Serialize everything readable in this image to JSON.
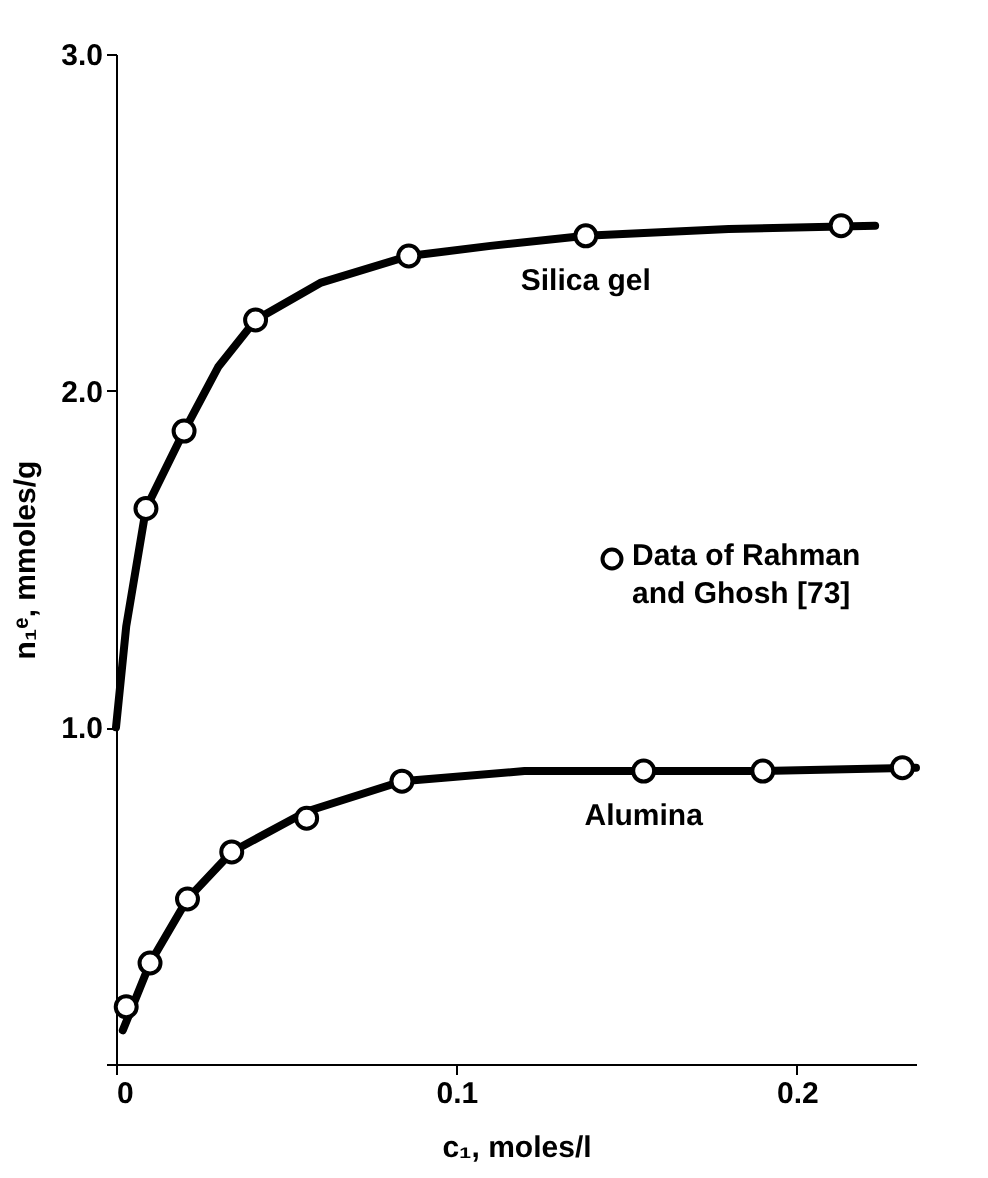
{
  "chart_data": {
    "type": "line",
    "xlabel": "c₁, moles/l",
    "ylabel": "n₁ᵉ, mmoles/g",
    "xlim": [
      0,
      0.235
    ],
    "xticks": [
      0,
      0.1,
      0.2
    ],
    "ylim": [
      0,
      3.0
    ],
    "yticks": [
      {
        "value": 0,
        "label": null
      },
      {
        "value": 1,
        "label": "1.0"
      },
      {
        "value": 2,
        "label": "2.0"
      },
      {
        "value": 3,
        "label": "3.0"
      }
    ],
    "grid": false,
    "legend": "right",
    "line_style": "solid",
    "series": [
      {
        "name": "Silica gel",
        "type": "line",
        "color": "#000000",
        "x": [
          0,
          0.003,
          0.0088,
          0.02,
          0.03,
          0.041,
          0.06,
          0.086,
          0.11,
          0.138,
          0.18,
          0.223
        ],
        "values": [
          1.0,
          1.3,
          1.65,
          1.88,
          2.07,
          2.21,
          2.32,
          2.4,
          2.43,
          2.46,
          2.48,
          2.49
        ]
      },
      {
        "name": "Alumina",
        "type": "line",
        "color": "#000000",
        "x": [
          0.002,
          0.01,
          0.021,
          0.034,
          0.056,
          0.084,
          0.12,
          0.155,
          0.19,
          0.235
        ],
        "values": [
          0.1,
          0.3,
          0.49,
          0.63,
          0.75,
          0.84,
          0.87,
          0.87,
          0.87,
          0.88
        ]
      },
      {
        "name": "Data of Rahman and Ghosh [73]",
        "type": "scatter",
        "marker": "circle",
        "color": "#000000",
        "x": [
          0.0088,
          0.02,
          0.041,
          0.086,
          0.138,
          0.213,
          0.003,
          0.01,
          0.021,
          0.034,
          0.056,
          0.084,
          0.155,
          0.19,
          0.231
        ],
        "values": [
          1.65,
          1.88,
          2.21,
          2.4,
          2.46,
          2.49,
          0.17,
          0.3,
          0.49,
          0.63,
          0.73,
          0.84,
          0.87,
          0.87,
          0.88
        ]
      }
    ]
  }
}
